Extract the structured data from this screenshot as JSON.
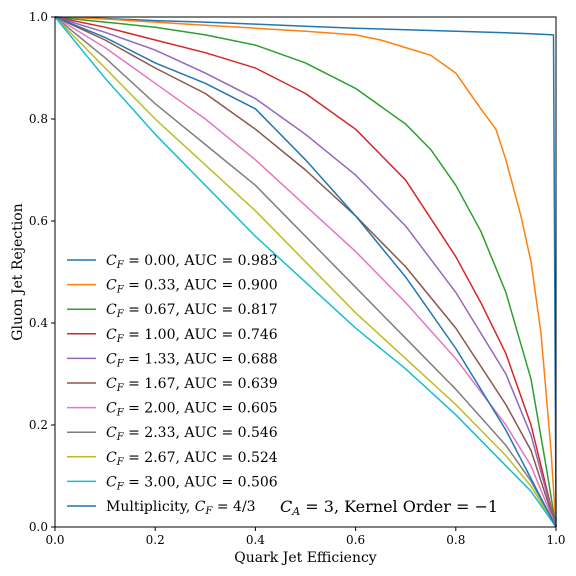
{
  "chart_data": {
    "type": "line",
    "xlabel": "Quark Jet Efficiency",
    "ylabel": "Gluon Jet Rejection",
    "xlim": [
      0.0,
      1.0
    ],
    "ylim": [
      0.0,
      1.0
    ],
    "xticks": [
      "0.0",
      "0.2",
      "0.4",
      "0.6",
      "0.8",
      "1.0"
    ],
    "yticks": [
      "0.0",
      "0.2",
      "0.4",
      "0.6",
      "0.8",
      "1.0"
    ],
    "grid": false,
    "legend_position": "lower-left",
    "annotation": "C_A = 3, Kernel Order = −1",
    "series": [
      {
        "name": "C_F = 0.00, AUC = 0.983",
        "color": "#1f77b4",
        "x": [
          0,
          0.1,
          0.2,
          0.3,
          0.4,
          0.5,
          0.6,
          0.7,
          0.8,
          0.9,
          0.95,
          0.995,
          1.0
        ],
        "y": [
          1.0,
          0.997,
          0.993,
          0.99,
          0.986,
          0.982,
          0.978,
          0.975,
          0.972,
          0.969,
          0.967,
          0.965,
          0.0
        ]
      },
      {
        "name": "C_F = 0.33, AUC = 0.900",
        "color": "#ff7f0e",
        "x": [
          0,
          0.1,
          0.2,
          0.3,
          0.4,
          0.5,
          0.6,
          0.65,
          0.7,
          0.75,
          0.8,
          0.85,
          0.88,
          0.9,
          0.93,
          0.95,
          0.97,
          0.99,
          1.0
        ],
        "y": [
          1.0,
          0.996,
          0.99,
          0.984,
          0.978,
          0.972,
          0.965,
          0.955,
          0.94,
          0.925,
          0.89,
          0.82,
          0.78,
          0.72,
          0.61,
          0.52,
          0.38,
          0.15,
          0.0
        ]
      },
      {
        "name": "C_F = 0.67, AUC = 0.817",
        "color": "#2ca02c",
        "x": [
          0,
          0.1,
          0.2,
          0.3,
          0.4,
          0.5,
          0.6,
          0.7,
          0.75,
          0.8,
          0.85,
          0.9,
          0.95,
          0.98,
          1.0
        ],
        "y": [
          1.0,
          0.99,
          0.98,
          0.965,
          0.945,
          0.91,
          0.86,
          0.79,
          0.74,
          0.67,
          0.58,
          0.46,
          0.29,
          0.12,
          0.0
        ]
      },
      {
        "name": "C_F = 1.00, AUC = 0.746",
        "color": "#d62728",
        "x": [
          0,
          0.1,
          0.2,
          0.3,
          0.4,
          0.5,
          0.6,
          0.7,
          0.8,
          0.85,
          0.9,
          0.95,
          1.0
        ],
        "y": [
          1.0,
          0.98,
          0.955,
          0.93,
          0.9,
          0.85,
          0.78,
          0.68,
          0.53,
          0.44,
          0.34,
          0.2,
          0.0
        ]
      },
      {
        "name": "C_F = 1.33, AUC = 0.688",
        "color": "#9467bd",
        "x": [
          0,
          0.1,
          0.2,
          0.3,
          0.4,
          0.5,
          0.6,
          0.7,
          0.8,
          0.9,
          0.95,
          1.0
        ],
        "y": [
          1.0,
          0.97,
          0.935,
          0.89,
          0.84,
          0.77,
          0.69,
          0.59,
          0.46,
          0.3,
          0.18,
          0.0
        ]
      },
      {
        "name": "C_F = 1.67, AUC = 0.639",
        "color": "#8c564b",
        "x": [
          0,
          0.1,
          0.2,
          0.3,
          0.4,
          0.5,
          0.6,
          0.7,
          0.8,
          0.9,
          0.95,
          1.0
        ],
        "y": [
          1.0,
          0.955,
          0.9,
          0.85,
          0.78,
          0.7,
          0.61,
          0.51,
          0.39,
          0.24,
          0.15,
          0.0
        ]
      },
      {
        "name": "C_F = 2.00, AUC = 0.605",
        "color": "#e377c2",
        "x": [
          0,
          0.1,
          0.2,
          0.3,
          0.4,
          0.5,
          0.6,
          0.7,
          0.8,
          0.9,
          0.95,
          1.0
        ],
        "y": [
          1.0,
          0.94,
          0.87,
          0.8,
          0.72,
          0.63,
          0.54,
          0.44,
          0.33,
          0.2,
          0.12,
          0.0
        ]
      },
      {
        "name": "C_F = 2.33, AUC = 0.546",
        "color": "#7f7f7f",
        "x": [
          0,
          0.1,
          0.2,
          0.3,
          0.4,
          0.5,
          0.6,
          0.7,
          0.8,
          0.9,
          0.95,
          1.0
        ],
        "y": [
          1.0,
          0.92,
          0.83,
          0.75,
          0.67,
          0.57,
          0.47,
          0.37,
          0.27,
          0.16,
          0.09,
          0.0
        ]
      },
      {
        "name": "C_F = 2.67, AUC = 0.524",
        "color": "#bcbd22",
        "x": [
          0,
          0.1,
          0.2,
          0.3,
          0.4,
          0.5,
          0.6,
          0.7,
          0.8,
          0.9,
          0.95,
          1.0
        ],
        "y": [
          1.0,
          0.9,
          0.8,
          0.71,
          0.62,
          0.52,
          0.42,
          0.33,
          0.24,
          0.14,
          0.08,
          0.0
        ]
      },
      {
        "name": "C_F = 3.00, AUC = 0.506",
        "color": "#17becf",
        "x": [
          0,
          0.1,
          0.2,
          0.3,
          0.4,
          0.5,
          0.6,
          0.7,
          0.8,
          0.9,
          0.95,
          1.0
        ],
        "y": [
          1.0,
          0.88,
          0.77,
          0.67,
          0.57,
          0.48,
          0.39,
          0.31,
          0.22,
          0.12,
          0.07,
          0.0
        ]
      },
      {
        "name": "Multiplicity, C_F = 4/3",
        "color": "#1f77b4",
        "x": [
          0,
          0.1,
          0.2,
          0.3,
          0.4,
          0.5,
          0.6,
          0.7,
          0.8,
          0.9,
          1.0
        ],
        "y": [
          1.0,
          0.96,
          0.91,
          0.87,
          0.82,
          0.72,
          0.61,
          0.49,
          0.35,
          0.19,
          0.0
        ]
      }
    ],
    "legend": [
      {
        "prefix": "C",
        "sub": "F",
        "rest": " = 0.00, AUC = 0.983"
      },
      {
        "prefix": "C",
        "sub": "F",
        "rest": " = 0.33, AUC = 0.900"
      },
      {
        "prefix": "C",
        "sub": "F",
        "rest": " = 0.67, AUC = 0.817"
      },
      {
        "prefix": "C",
        "sub": "F",
        "rest": " = 1.00, AUC = 0.746"
      },
      {
        "prefix": "C",
        "sub": "F",
        "rest": " = 1.33, AUC = 0.688"
      },
      {
        "prefix": "C",
        "sub": "F",
        "rest": " = 1.67, AUC = 0.639"
      },
      {
        "prefix": "C",
        "sub": "F",
        "rest": " = 2.00, AUC = 0.605"
      },
      {
        "prefix": "C",
        "sub": "F",
        "rest": " = 2.33, AUC = 0.546"
      },
      {
        "prefix": "C",
        "sub": "F",
        "rest": " = 2.67, AUC = 0.524"
      },
      {
        "prefix": "C",
        "sub": "F",
        "rest": " = 3.00, AUC = 0.506"
      },
      {
        "lead": "Multiplicity, ",
        "prefix": "C",
        "sub": "F",
        "rest": " = 4/3"
      }
    ],
    "annotation_parts": {
      "prefix": "C",
      "sub": "A",
      "rest": " = 3, Kernel Order = −1"
    }
  }
}
